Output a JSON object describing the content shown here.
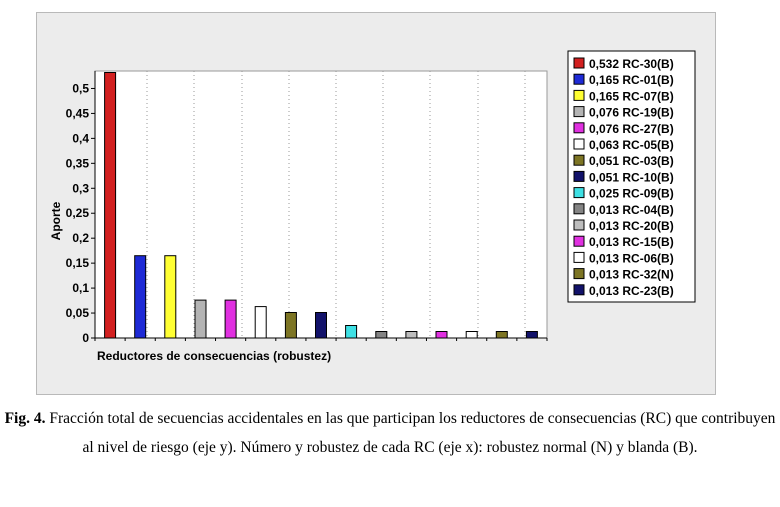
{
  "chart_data": {
    "type": "bar",
    "ylabel": "Aporte",
    "xlabel": "Reductores de consecuencias (robustez)",
    "ylim": [
      0,
      0.535
    ],
    "yticks": [
      "0",
      "0,05",
      "0,1",
      "0,15",
      "0,2",
      "0,25",
      "0,3",
      "0,35",
      "0,4",
      "0,45",
      "0,5"
    ],
    "ytick_values": [
      0,
      0.05,
      0.1,
      0.15,
      0.2,
      0.25,
      0.3,
      0.35,
      0.4,
      0.45,
      0.5
    ],
    "grid": "vertical dotted",
    "legend_position": "right",
    "series": [
      {
        "name": "0,532 RC-30(B)",
        "value": 0.532,
        "color": "#d22020"
      },
      {
        "name": "0,165 RC-01(B)",
        "value": 0.165,
        "color": "#1e2ad6"
      },
      {
        "name": "0,165 RC-07(B)",
        "value": 0.165,
        "color": "#ffff33"
      },
      {
        "name": "0,076 RC-19(B)",
        "value": 0.076,
        "color": "#b4b4b4"
      },
      {
        "name": "0,076 RC-27(B)",
        "value": 0.076,
        "color": "#e030e0"
      },
      {
        "name": "0,063 RC-05(B)",
        "value": 0.063,
        "color": "#ffffff"
      },
      {
        "name": "0,051 RC-03(B)",
        "value": 0.051,
        "color": "#7d7524"
      },
      {
        "name": "0,051 RC-10(B)",
        "value": 0.051,
        "color": "#12126a"
      },
      {
        "name": "0,025 RC-09(B)",
        "value": 0.025,
        "color": "#3ee0e4"
      },
      {
        "name": "0,013 RC-04(B)",
        "value": 0.013,
        "color": "#848484"
      },
      {
        "name": "0,013 RC-20(B)",
        "value": 0.013,
        "color": "#bdbdbd"
      },
      {
        "name": "0,013 RC-15(B)",
        "value": 0.013,
        "color": "#e030e0"
      },
      {
        "name": "0,013 RC-06(B)",
        "value": 0.013,
        "color": "#ffffff"
      },
      {
        "name": "0,013 RC-32(N)",
        "value": 0.013,
        "color": "#7d7524"
      },
      {
        "name": "0,013 RC-23(B)",
        "value": 0.013,
        "color": "#12126a"
      }
    ]
  },
  "caption": {
    "label": "Fig. 4.",
    "text": " Fracción total de secuencias accidentales en las que participan los reductores de consecuencias (RC) que contribuyen al nivel de riesgo (eje y). Número y robustez de cada RC (eje x): robustez normal (N) y blanda (B)."
  }
}
